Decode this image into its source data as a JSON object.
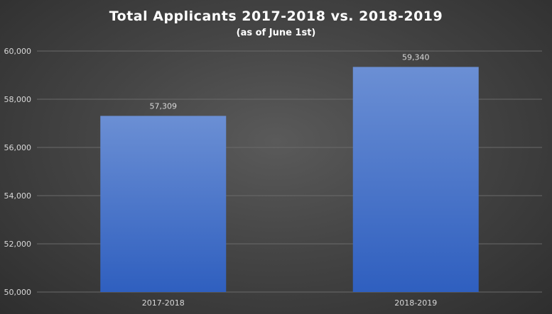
{
  "chart_data": {
    "type": "bar",
    "title": "Total Applicants 2017-2018 vs. 2018-2019",
    "subtitle": "(as of June 1st)",
    "categories": [
      "2017-2018",
      "2018-2019"
    ],
    "values": [
      57309,
      59340
    ],
    "data_labels": [
      "57,309",
      "59,340"
    ],
    "ylim": [
      50000,
      60000
    ],
    "yticks": [
      50000,
      52000,
      54000,
      56000,
      58000,
      60000
    ],
    "ytick_labels": [
      "50,000",
      "52,000",
      "54,000",
      "56,000",
      "58,000",
      "60,000"
    ],
    "grid": true,
    "legend": "none",
    "bar_color_top": "#6b8fd4",
    "bar_color_bottom": "#2f5fbf",
    "grid_color": "#6a6a6a"
  }
}
